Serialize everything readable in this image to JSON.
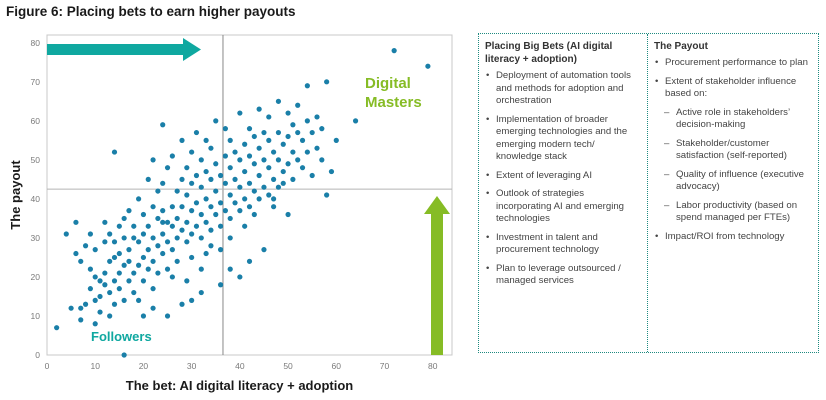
{
  "figure_title": "Figure 6: Placing bets to earn higher payouts",
  "chart_data": {
    "type": "scatter",
    "title": "",
    "xlabel": "The bet: AI digital literacy + adoption",
    "ylabel": "The payout",
    "xlim": [
      0,
      84
    ],
    "ylim": [
      0,
      82
    ],
    "xticks": [
      0,
      10,
      20,
      30,
      40,
      50,
      60,
      70,
      80
    ],
    "yticks": [
      0,
      10,
      20,
      30,
      40,
      50,
      60,
      70,
      80
    ],
    "grid": false,
    "divider_x": 36.5,
    "divider_y": 42.5,
    "annotations": {
      "upper_right": "Digital\nMasters",
      "lower_left": "Followers"
    },
    "colors": {
      "points": "#1a7fa8",
      "arrow_horizontal": "#0fa8a0",
      "arrow_vertical": "#86bc25",
      "divider": "#888888"
    },
    "points": [
      [
        2,
        7
      ],
      [
        4,
        31
      ],
      [
        5,
        12
      ],
      [
        6,
        34
      ],
      [
        6,
        26
      ],
      [
        7,
        9
      ],
      [
        7,
        12
      ],
      [
        7,
        24
      ],
      [
        8,
        13
      ],
      [
        8,
        28
      ],
      [
        9,
        17
      ],
      [
        9,
        22
      ],
      [
        9,
        31
      ],
      [
        10,
        14
      ],
      [
        10,
        8
      ],
      [
        10,
        20
      ],
      [
        10,
        27
      ],
      [
        11,
        11
      ],
      [
        11,
        19
      ],
      [
        11,
        15
      ],
      [
        12,
        21
      ],
      [
        12,
        34
      ],
      [
        12,
        18
      ],
      [
        12,
        29
      ],
      [
        13,
        16
      ],
      [
        13,
        24
      ],
      [
        13,
        31
      ],
      [
        13,
        10
      ],
      [
        14,
        19
      ],
      [
        14,
        25
      ],
      [
        14,
        13
      ],
      [
        14,
        29
      ],
      [
        15,
        21
      ],
      [
        15,
        17
      ],
      [
        15,
        33
      ],
      [
        15,
        26
      ],
      [
        16,
        14
      ],
      [
        16,
        23
      ],
      [
        16,
        30
      ],
      [
        16,
        0
      ],
      [
        14,
        52
      ],
      [
        16,
        35
      ],
      [
        17,
        19
      ],
      [
        17,
        27
      ],
      [
        17,
        24
      ],
      [
        17,
        37
      ],
      [
        18,
        21
      ],
      [
        18,
        30
      ],
      [
        18,
        16
      ],
      [
        18,
        33
      ],
      [
        19,
        23
      ],
      [
        19,
        29
      ],
      [
        19,
        40
      ],
      [
        19,
        14
      ],
      [
        20,
        25
      ],
      [
        20,
        31
      ],
      [
        20,
        19
      ],
      [
        20,
        36
      ],
      [
        21,
        27
      ],
      [
        21,
        22
      ],
      [
        21,
        33
      ],
      [
        21,
        45
      ],
      [
        22,
        24
      ],
      [
        22,
        30
      ],
      [
        22,
        17
      ],
      [
        22,
        38
      ],
      [
        22,
        50
      ],
      [
        23,
        28
      ],
      [
        23,
        35
      ],
      [
        23,
        21
      ],
      [
        23,
        42
      ],
      [
        24,
        31
      ],
      [
        24,
        26
      ],
      [
        24,
        37
      ],
      [
        24,
        44
      ],
      [
        24,
        59
      ],
      [
        25,
        29
      ],
      [
        25,
        34
      ],
      [
        25,
        22
      ],
      [
        25,
        48
      ],
      [
        25,
        10
      ],
      [
        26,
        33
      ],
      [
        26,
        38
      ],
      [
        26,
        27
      ],
      [
        26,
        51
      ],
      [
        27,
        30
      ],
      [
        27,
        35
      ],
      [
        27,
        42
      ],
      [
        27,
        24
      ],
      [
        28,
        32
      ],
      [
        28,
        38
      ],
      [
        28,
        45
      ],
      [
        28,
        55
      ],
      [
        29,
        29
      ],
      [
        29,
        34
      ],
      [
        29,
        41
      ],
      [
        29,
        48
      ],
      [
        29,
        19
      ],
      [
        30,
        31
      ],
      [
        30,
        37
      ],
      [
        30,
        44
      ],
      [
        30,
        52
      ],
      [
        30,
        25
      ],
      [
        31,
        33
      ],
      [
        31,
        39
      ],
      [
        31,
        46
      ],
      [
        31,
        57
      ],
      [
        32,
        30
      ],
      [
        32,
        36
      ],
      [
        32,
        43
      ],
      [
        32,
        50
      ],
      [
        32,
        22
      ],
      [
        33,
        34
      ],
      [
        33,
        40
      ],
      [
        33,
        47
      ],
      [
        33,
        55
      ],
      [
        34,
        32
      ],
      [
        34,
        38
      ],
      [
        34,
        45
      ],
      [
        34,
        53
      ],
      [
        34,
        28
      ],
      [
        35,
        36
      ],
      [
        35,
        42
      ],
      [
        35,
        49
      ],
      [
        35,
        60
      ],
      [
        36,
        33
      ],
      [
        36,
        39
      ],
      [
        36,
        46
      ],
      [
        36,
        27
      ],
      [
        37,
        37
      ],
      [
        37,
        44
      ],
      [
        37,
        51
      ],
      [
        37,
        58
      ],
      [
        38,
        35
      ],
      [
        38,
        41
      ],
      [
        38,
        48
      ],
      [
        38,
        55
      ],
      [
        38,
        30
      ],
      [
        39,
        39
      ],
      [
        39,
        45
      ],
      [
        39,
        52
      ],
      [
        40,
        37
      ],
      [
        40,
        43
      ],
      [
        40,
        50
      ],
      [
        40,
        62
      ],
      [
        41,
        40
      ],
      [
        41,
        47
      ],
      [
        41,
        54
      ],
      [
        41,
        33
      ],
      [
        42,
        38
      ],
      [
        42,
        44
      ],
      [
        42,
        51
      ],
      [
        42,
        58
      ],
      [
        43,
        42
      ],
      [
        43,
        49
      ],
      [
        43,
        56
      ],
      [
        43,
        36
      ],
      [
        44,
        40
      ],
      [
        44,
        46
      ],
      [
        44,
        53
      ],
      [
        44,
        63
      ],
      [
        45,
        43
      ],
      [
        45,
        50
      ],
      [
        45,
        57
      ],
      [
        46,
        41
      ],
      [
        46,
        48
      ],
      [
        46,
        55
      ],
      [
        46,
        61
      ],
      [
        47,
        45
      ],
      [
        47,
        52
      ],
      [
        47,
        38
      ],
      [
        48,
        43
      ],
      [
        48,
        50
      ],
      [
        48,
        57
      ],
      [
        48,
        65
      ],
      [
        49,
        47
      ],
      [
        49,
        54
      ],
      [
        49,
        44
      ],
      [
        50,
        49
      ],
      [
        50,
        56
      ],
      [
        50,
        62
      ],
      [
        51,
        45
      ],
      [
        51,
        52
      ],
      [
        51,
        59
      ],
      [
        52,
        50
      ],
      [
        52,
        57
      ],
      [
        52,
        64
      ],
      [
        53,
        48
      ],
      [
        53,
        55
      ],
      [
        54,
        52
      ],
      [
        54,
        60
      ],
      [
        54,
        69
      ],
      [
        55,
        46
      ],
      [
        55,
        57
      ],
      [
        56,
        53
      ],
      [
        56,
        61
      ],
      [
        57,
        50
      ],
      [
        57,
        58
      ],
      [
        58,
        70
      ],
      [
        58,
        41
      ],
      [
        59,
        47
      ],
      [
        60,
        55
      ],
      [
        64,
        60
      ],
      [
        72,
        78
      ],
      [
        79,
        74
      ],
      [
        40,
        20
      ],
      [
        45,
        27
      ],
      [
        47,
        40
      ],
      [
        24,
        34
      ],
      [
        28,
        13
      ],
      [
        32,
        16
      ],
      [
        36,
        18
      ],
      [
        20,
        10
      ],
      [
        42,
        24
      ],
      [
        33,
        26
      ],
      [
        26,
        20
      ],
      [
        22,
        12
      ],
      [
        30,
        14
      ],
      [
        38,
        22
      ],
      [
        50,
        36
      ]
    ]
  },
  "panel": {
    "left": {
      "heading": "Placing Big Bets (AI digital literacy + adoption)",
      "items": [
        "Deployment of automation tools and methods for adoption and orchestration",
        "Implementation of broader emerging technologies and the emerging modern tech/ knowledge stack",
        "Extent of leveraging AI",
        "Outlook of strategies incorporating AI and emerging technologies",
        "Investment in talent and procurement technology",
        "Plan to leverage outsourced / managed services"
      ]
    },
    "right": {
      "heading": "The Payout",
      "item_1": "Procurement performance to plan",
      "item_2": "Extent of stakeholder influence based on:",
      "sub_items": [
        "Active role in stakeholders’ decision-making",
        "Stakeholder/customer satisfaction (self-reported)",
        "Quality of influence (executive advocacy)",
        "Labor productivity (based on spend managed per FTEs)"
      ],
      "item_3": "Impact/ROI from technology"
    }
  }
}
